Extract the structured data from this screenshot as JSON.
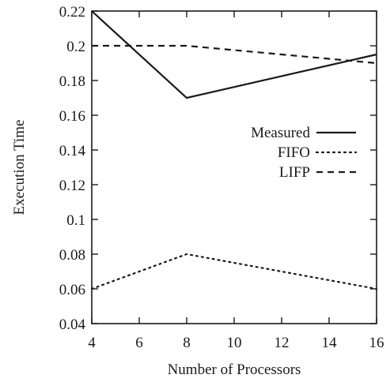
{
  "chart_data": {
    "type": "line",
    "title": "",
    "xlabel": "Number of Processors",
    "ylabel": "Execution Time",
    "xlim": [
      4,
      16
    ],
    "ylim": [
      0.04,
      0.22
    ],
    "xticks": [
      4,
      6,
      8,
      10,
      12,
      14,
      16
    ],
    "yticks": [
      0.04,
      0.06,
      0.08,
      0.1,
      0.12,
      0.14,
      0.16,
      0.18,
      0.2,
      0.22
    ],
    "xtick_labels": [
      "4",
      "6",
      "8",
      "10",
      "12",
      "14",
      "16"
    ],
    "ytick_labels": [
      "0.04",
      "0.06",
      "0.08",
      "0.1",
      "0.12",
      "0.14",
      "0.16",
      "0.18",
      "0.2",
      "0.22"
    ],
    "grid": false,
    "legend_position": "right",
    "series": [
      {
        "name": "Measured",
        "style": "solid",
        "x": [
          4,
          8,
          16
        ],
        "y": [
          0.22,
          0.17,
          0.195
        ]
      },
      {
        "name": "FIFO",
        "style": "dotted",
        "x": [
          4,
          8,
          16
        ],
        "y": [
          0.06,
          0.08,
          0.06
        ]
      },
      {
        "name": "LIFP",
        "style": "dashed",
        "x": [
          4,
          8,
          16
        ],
        "y": [
          0.2,
          0.2,
          0.19
        ]
      }
    ]
  }
}
